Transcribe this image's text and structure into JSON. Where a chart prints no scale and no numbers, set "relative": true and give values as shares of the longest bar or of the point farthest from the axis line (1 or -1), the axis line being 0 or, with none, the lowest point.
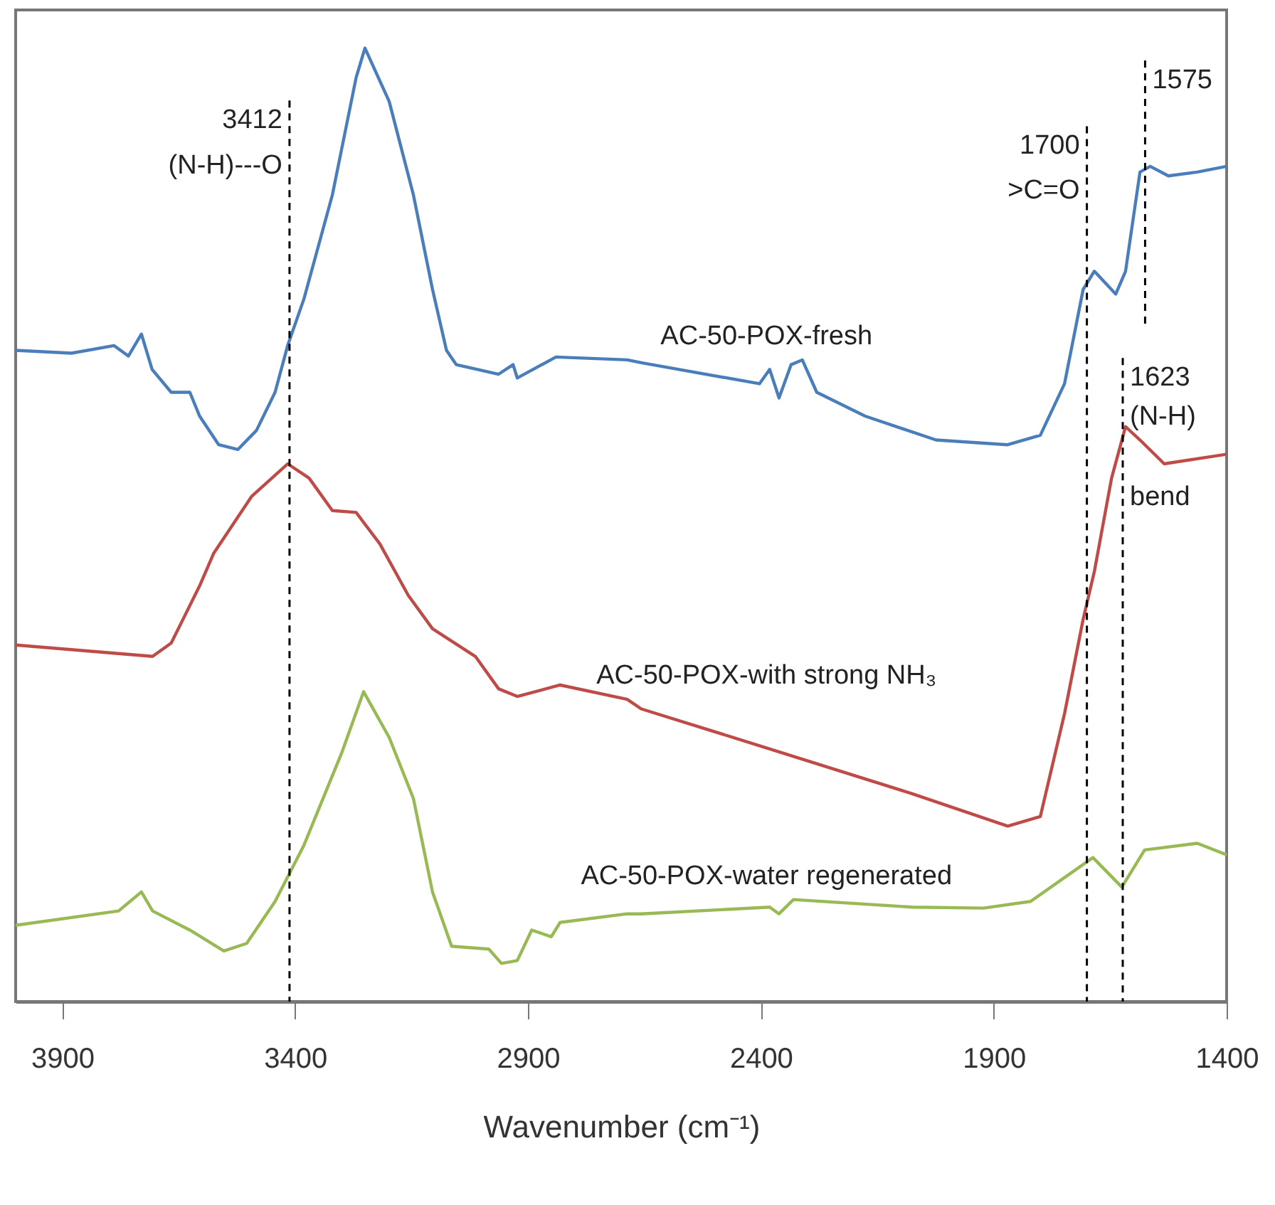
{
  "chart_data": {
    "type": "line",
    "relative": true,
    "xlabel": "Wavenumber (cm⁻¹)",
    "xlim": [
      4000,
      1400
    ],
    "xticks": [
      3900,
      3400,
      2900,
      2400,
      1900,
      1400
    ],
    "line_style": "solid",
    "marker": "none",
    "series": [
      {
        "name": "AC-50-POX-fresh",
        "color": "#4a7ebb",
        "x": [
          4000,
          3880,
          3789,
          3758,
          3730,
          3707,
          3666,
          3626,
          3605,
          3564,
          3523,
          3483,
          3443,
          3416,
          3381,
          3320,
          3269,
          3250,
          3198,
          3146,
          3105,
          3075,
          3054,
          2963,
          2932,
          2923,
          2840,
          2687,
          2657,
          2403,
          2381,
          2361,
          2335,
          2311,
          2280,
          2176,
          2024,
          1870,
          1800,
          1748,
          1708,
          1684,
          1638,
          1617,
          1586,
          1564,
          1525,
          1463,
          1400
        ],
        "values": [
          0.683,
          0.68,
          0.688,
          0.677,
          0.7,
          0.663,
          0.639,
          0.639,
          0.614,
          0.584,
          0.579,
          0.599,
          0.639,
          0.688,
          0.737,
          0.846,
          0.969,
          1.0,
          0.944,
          0.846,
          0.747,
          0.683,
          0.668,
          0.658,
          0.668,
          0.654,
          0.676,
          0.673,
          0.67,
          0.648,
          0.663,
          0.633,
          0.668,
          0.673,
          0.639,
          0.614,
          0.589,
          0.584,
          0.594,
          0.648,
          0.747,
          0.766,
          0.742,
          0.766,
          0.87,
          0.876,
          0.866,
          0.87,
          0.876
        ]
      },
      {
        "name": "AC-50-POX-with strong NH₃",
        "color": "#be4b48",
        "x": [
          4000,
          3706,
          3666,
          3605,
          3575,
          3493,
          3416,
          3370,
          3320,
          3269,
          3218,
          3157,
          3105,
          3013,
          2963,
          2923,
          2831,
          2687,
          2657,
          2381,
          2075,
          1870,
          1800,
          1748,
          1708,
          1684,
          1647,
          1617,
          1586,
          1534,
          1400
        ],
        "values": [
          0.374,
          0.362,
          0.376,
          0.436,
          0.47,
          0.53,
          0.564,
          0.549,
          0.515,
          0.513,
          0.48,
          0.426,
          0.391,
          0.362,
          0.328,
          0.32,
          0.332,
          0.317,
          0.307,
          0.265,
          0.218,
          0.184,
          0.194,
          0.302,
          0.401,
          0.451,
          0.549,
          0.603,
          0.589,
          0.564,
          0.574
        ]
      },
      {
        "name": "AC-50-POX-water regenerated",
        "color": "#98b954",
        "x": [
          4000,
          3779,
          3730,
          3706,
          3626,
          3553,
          3504,
          3443,
          3381,
          3299,
          3253,
          3198,
          3146,
          3105,
          3064,
          2984,
          2957,
          2923,
          2892,
          2850,
          2831,
          2687,
          2657,
          2381,
          2361,
          2330,
          2075,
          1922,
          1821,
          1687,
          1625,
          1576,
          1463,
          1400
        ],
        "values": [
          0.08,
          0.095,
          0.115,
          0.095,
          0.075,
          0.053,
          0.061,
          0.105,
          0.164,
          0.262,
          0.325,
          0.277,
          0.213,
          0.115,
          0.058,
          0.055,
          0.04,
          0.043,
          0.075,
          0.068,
          0.083,
          0.092,
          0.092,
          0.099,
          0.092,
          0.107,
          0.099,
          0.098,
          0.105,
          0.151,
          0.12,
          0.159,
          0.166,
          0.154
        ]
      }
    ],
    "ref_lines": [
      {
        "axis": "x",
        "value": 3412,
        "line_style": "dashed",
        "color": "#000000"
      },
      {
        "axis": "x",
        "value": 1700,
        "line_style": "dashed",
        "color": "#000000"
      },
      {
        "axis": "x",
        "value": 1575,
        "line_style": "dashed",
        "color": "#000000"
      },
      {
        "axis": "x",
        "value": 1623,
        "line_style": "dashed",
        "color": "#000000"
      }
    ],
    "annotations": [
      {
        "text": "3412",
        "x": 3412,
        "y": 0.925
      },
      {
        "text": "(N-H)---O",
        "x": 3412,
        "y": 0.877
      },
      {
        "text": "1700",
        "x": 1700,
        "y": 0.898
      },
      {
        "text": ">C=O",
        "x": 1700,
        "y": 0.851
      },
      {
        "text": "1575",
        "x": 1575,
        "y": 0.967
      },
      {
        "text": "1623",
        "x": 1623,
        "y": 0.655
      },
      {
        "text": "(N-H)",
        "x": 1623,
        "y": 0.614
      },
      {
        "text": "bend",
        "x": 1623,
        "y": 0.53
      }
    ]
  }
}
